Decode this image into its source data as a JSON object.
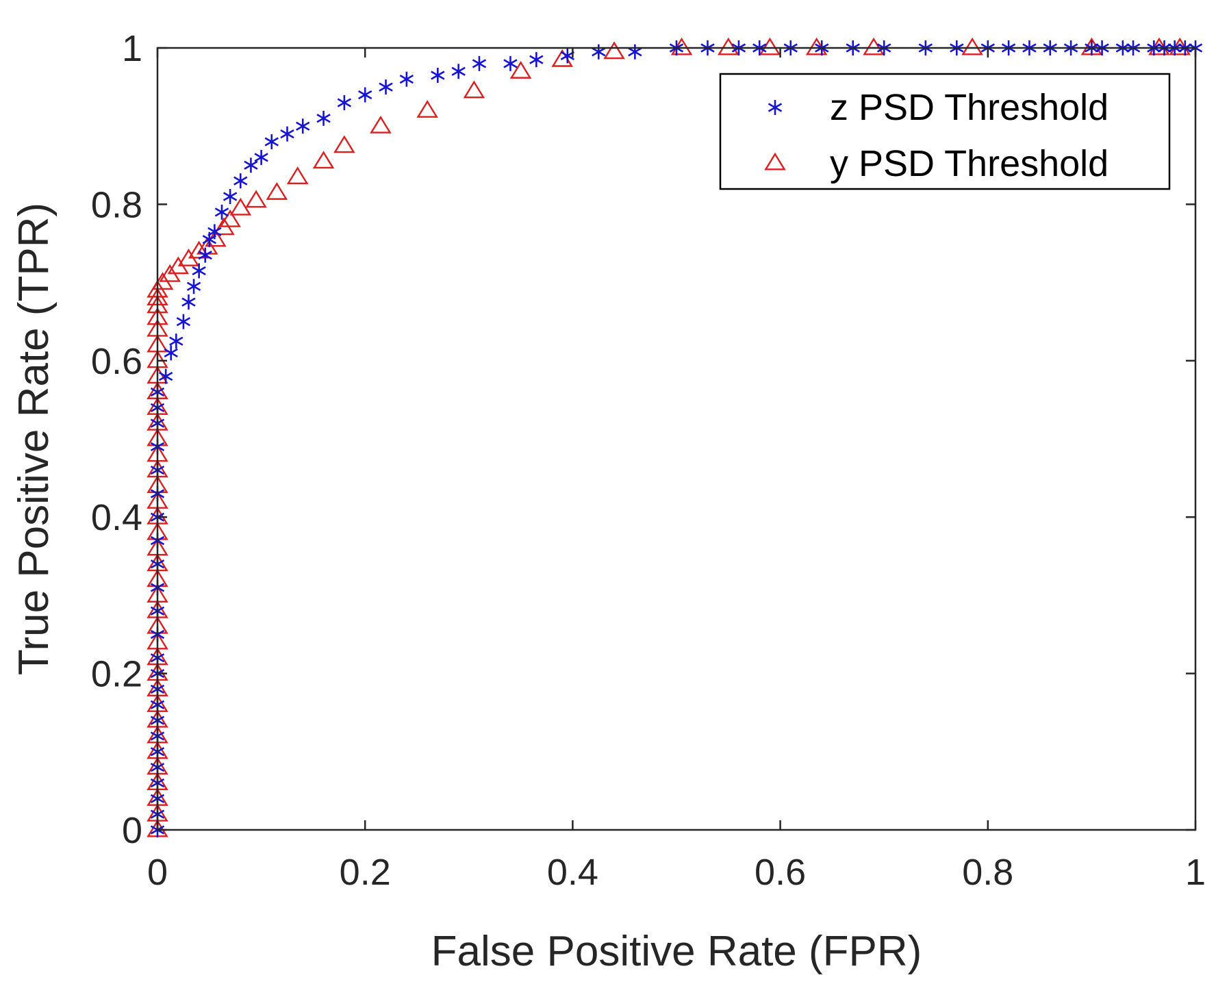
{
  "chart_data": {
    "type": "scatter",
    "title": "",
    "xlabel": "False Positive Rate (FPR)",
    "ylabel": "True Positive Rate (TPR)",
    "xlim": [
      0,
      1
    ],
    "ylim": [
      0,
      1
    ],
    "grid": false,
    "box": true,
    "legend_position": "top-right",
    "xticks": [
      0,
      0.2,
      0.4,
      0.6,
      0.8,
      1
    ],
    "yticks": [
      0,
      0.2,
      0.4,
      0.6,
      0.8,
      1
    ],
    "xtick_labels": [
      "0",
      "0.2",
      "0.4",
      "0.6",
      "0.8",
      "1"
    ],
    "ytick_labels": [
      "0",
      "0.2",
      "0.4",
      "0.6",
      "0.8",
      "1"
    ],
    "series": [
      {
        "name": "z PSD Threshold",
        "marker": "asterisk",
        "color": "#1414d2",
        "x": [
          0,
          0,
          0,
          0,
          0,
          0,
          0,
          0,
          0,
          0,
          0,
          0,
          0,
          0,
          0,
          0,
          0,
          0,
          0,
          0,
          0,
          0,
          0,
          0,
          0.008,
          0.013,
          0.018,
          0.025,
          0.03,
          0.035,
          0.04,
          0.046,
          0.05,
          0.055,
          0.062,
          0.07,
          0.08,
          0.09,
          0.1,
          0.11,
          0.125,
          0.14,
          0.16,
          0.18,
          0.2,
          0.22,
          0.24,
          0.27,
          0.29,
          0.31,
          0.34,
          0.365,
          0.395,
          0.425,
          0.46,
          0.5,
          0.53,
          0.56,
          0.58,
          0.61,
          0.64,
          0.67,
          0.7,
          0.74,
          0.77,
          0.8,
          0.82,
          0.84,
          0.86,
          0.88,
          0.9,
          0.91,
          0.93,
          0.94,
          0.96,
          0.97,
          0.98,
          0.99,
          1.0
        ],
        "y": [
          0.0,
          0.02,
          0.04,
          0.06,
          0.08,
          0.1,
          0.12,
          0.14,
          0.16,
          0.18,
          0.2,
          0.22,
          0.25,
          0.28,
          0.31,
          0.34,
          0.37,
          0.4,
          0.43,
          0.46,
          0.49,
          0.52,
          0.54,
          0.56,
          0.58,
          0.61,
          0.625,
          0.65,
          0.675,
          0.695,
          0.715,
          0.735,
          0.755,
          0.765,
          0.79,
          0.81,
          0.83,
          0.85,
          0.86,
          0.88,
          0.89,
          0.9,
          0.91,
          0.93,
          0.94,
          0.95,
          0.96,
          0.965,
          0.97,
          0.98,
          0.98,
          0.985,
          0.99,
          0.995,
          0.995,
          1.0,
          1.0,
          1.0,
          1.0,
          1.0,
          1.0,
          1.0,
          1.0,
          1.0,
          1.0,
          1.0,
          1.0,
          1.0,
          1.0,
          1.0,
          1.0,
          1.0,
          1.0,
          1.0,
          1.0,
          1.0,
          1.0,
          1.0,
          1.0
        ]
      },
      {
        "name": "y PSD Threshold",
        "marker": "triangle",
        "color": "#dc1e1e",
        "x": [
          0,
          0,
          0,
          0,
          0,
          0,
          0,
          0,
          0,
          0,
          0,
          0,
          0,
          0,
          0,
          0,
          0,
          0,
          0,
          0,
          0,
          0,
          0,
          0,
          0,
          0,
          0,
          0,
          0,
          0,
          0,
          0,
          0,
          0,
          0,
          0,
          0,
          0.005,
          0.012,
          0.02,
          0.03,
          0.04,
          0.048,
          0.056,
          0.064,
          0.07,
          0.08,
          0.095,
          0.115,
          0.135,
          0.16,
          0.18,
          0.215,
          0.26,
          0.305,
          0.35,
          0.39,
          0.44,
          0.505,
          0.55,
          0.59,
          0.635,
          0.69,
          0.785,
          0.9,
          0.965,
          0.985
        ],
        "y": [
          0.0,
          0.02,
          0.04,
          0.06,
          0.08,
          0.1,
          0.12,
          0.14,
          0.16,
          0.18,
          0.2,
          0.22,
          0.24,
          0.26,
          0.28,
          0.3,
          0.32,
          0.34,
          0.36,
          0.38,
          0.4,
          0.42,
          0.44,
          0.46,
          0.48,
          0.5,
          0.52,
          0.54,
          0.56,
          0.58,
          0.6,
          0.62,
          0.64,
          0.655,
          0.67,
          0.68,
          0.69,
          0.7,
          0.71,
          0.72,
          0.73,
          0.74,
          0.745,
          0.755,
          0.77,
          0.78,
          0.795,
          0.805,
          0.815,
          0.835,
          0.855,
          0.875,
          0.9,
          0.92,
          0.945,
          0.97,
          0.985,
          0.995,
          1.0,
          1.0,
          1.0,
          1.0,
          1.0,
          1.0,
          1.0,
          1.0,
          1.0
        ]
      }
    ]
  }
}
